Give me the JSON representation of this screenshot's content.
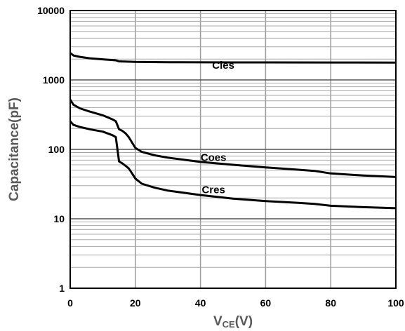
{
  "chart_data": {
    "type": "line",
    "title": "",
    "xlabel": "V",
    "xlabel_sub": "CE",
    "xlabel_suffix": "(V)",
    "ylabel": "Capacitance(pF)",
    "xlim": [
      0,
      100
    ],
    "ylim": [
      1,
      10000
    ],
    "yscale": "log",
    "grid": true,
    "x_ticks": [
      "0",
      "20",
      "40",
      "60",
      "80",
      "100"
    ],
    "y_ticks": [
      "1",
      "10",
      "100",
      "1000",
      "10000"
    ],
    "series": [
      {
        "name": "Cies",
        "label_at": [
          47,
          1450
        ],
        "points": [
          [
            0,
            2450
          ],
          [
            1,
            2250
          ],
          [
            3,
            2150
          ],
          [
            6,
            2050
          ],
          [
            10,
            1980
          ],
          [
            14,
            1920
          ],
          [
            15,
            1850
          ],
          [
            20,
            1820
          ],
          [
            30,
            1800
          ],
          [
            50,
            1790
          ],
          [
            80,
            1785
          ],
          [
            100,
            1780
          ]
        ]
      },
      {
        "name": "Coes",
        "label_at": [
          44,
          68
        ],
        "points": [
          [
            0,
            520
          ],
          [
            1,
            440
          ],
          [
            3,
            390
          ],
          [
            6,
            350
          ],
          [
            10,
            310
          ],
          [
            13,
            270
          ],
          [
            14,
            255
          ],
          [
            15,
            195
          ],
          [
            16,
            185
          ],
          [
            17,
            170
          ],
          [
            18,
            150
          ],
          [
            19,
            125
          ],
          [
            20,
            105
          ],
          [
            22,
            92
          ],
          [
            26,
            82
          ],
          [
            30,
            76
          ],
          [
            40,
            66
          ],
          [
            50,
            60
          ],
          [
            60,
            55
          ],
          [
            70,
            51
          ],
          [
            75,
            49
          ],
          [
            80,
            45
          ],
          [
            90,
            42
          ],
          [
            100,
            40
          ]
        ]
      },
      {
        "name": "Cres",
        "label_at": [
          44,
          23.5
        ],
        "points": [
          [
            0,
            255
          ],
          [
            1,
            225
          ],
          [
            3,
            210
          ],
          [
            6,
            195
          ],
          [
            10,
            180
          ],
          [
            13,
            160
          ],
          [
            14,
            150
          ],
          [
            15,
            67
          ],
          [
            16,
            63
          ],
          [
            17,
            58
          ],
          [
            18,
            53
          ],
          [
            19,
            45
          ],
          [
            20,
            38
          ],
          [
            22,
            32
          ],
          [
            26,
            28
          ],
          [
            30,
            25.5
          ],
          [
            40,
            22
          ],
          [
            50,
            19.5
          ],
          [
            60,
            18
          ],
          [
            70,
            17
          ],
          [
            75,
            16.4
          ],
          [
            80,
            15.4
          ],
          [
            90,
            14.7
          ],
          [
            100,
            14.2
          ]
        ]
      }
    ]
  }
}
